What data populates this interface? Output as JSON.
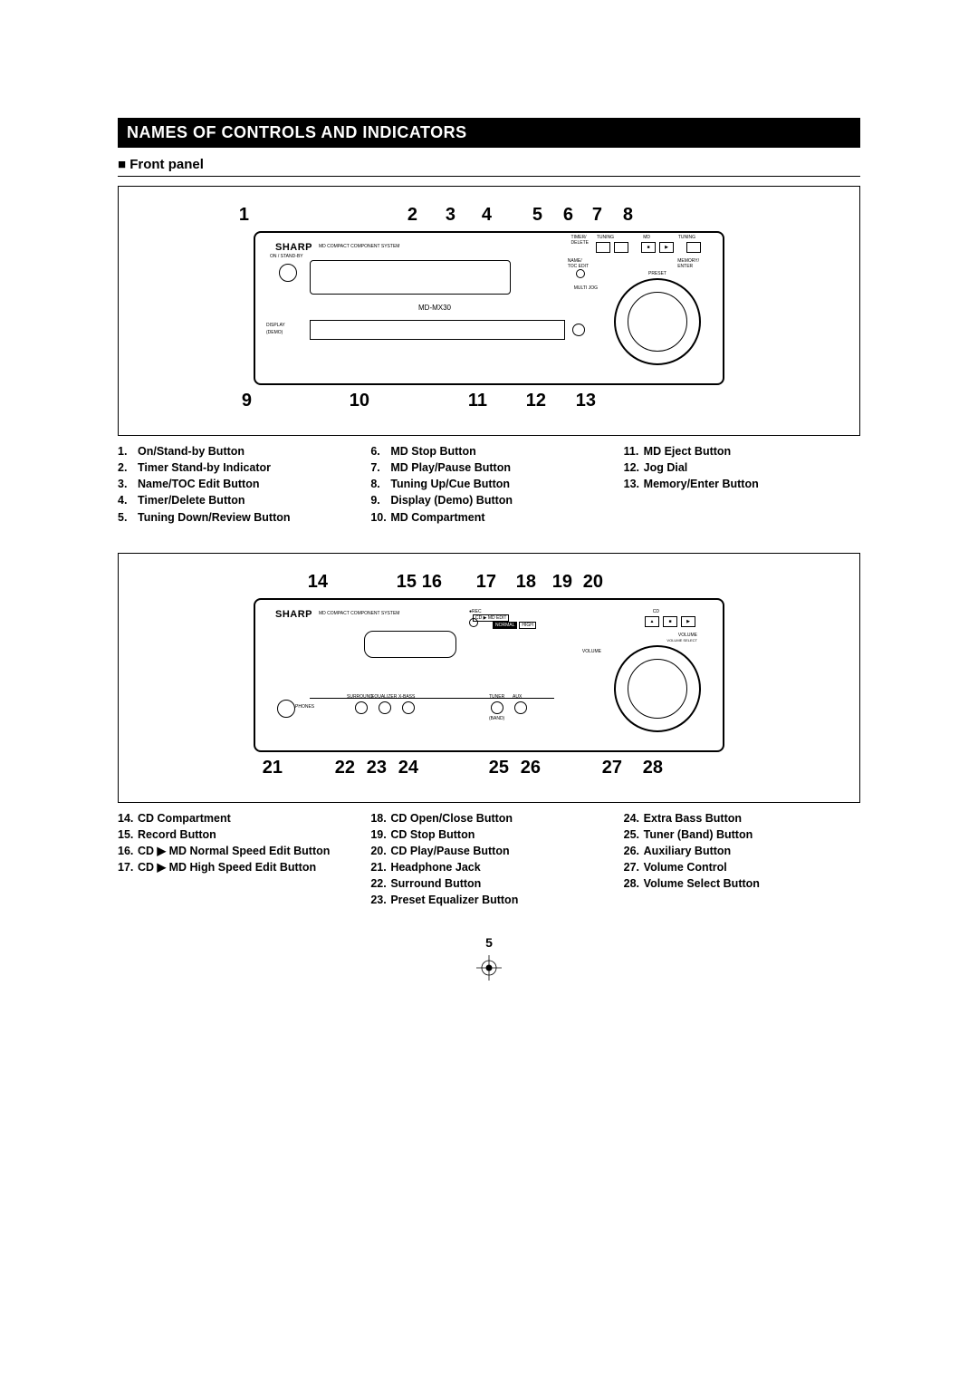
{
  "section_title": "NAMES OF CONTROLS AND INDICATORS",
  "subsection_marker": "■",
  "subsection_title": "Front panel",
  "page_number": "5",
  "device1": {
    "brand": "SHARP",
    "subbrand": "MD COMPACT COMPONENT SYSTEM",
    "model": "MD-MX30",
    "left_label1": "ON / STAND-BY",
    "left_label2": "DISPLAY",
    "left_label3": "(DEMO)",
    "top_label_timer": "TIMER/",
    "top_label_delete": "DELETE",
    "top_label_tuning_down": "TUNING",
    "top_label_md": "MD",
    "top_label_tuning_up": "TUNING",
    "label_name": "NAME/",
    "label_toc": "TOC EDIT",
    "label_memory": "MEMORY/",
    "label_enter": "ENTER",
    "label_multijog": "MULTI JOG",
    "label_preset": "PRESET",
    "callouts_top": [
      "1",
      "2",
      "3",
      "4",
      "5",
      "6",
      "7",
      "8"
    ],
    "callouts_bottom": [
      "9",
      "10",
      "11",
      "12",
      "13"
    ]
  },
  "device2": {
    "brand": "SHARP",
    "subbrand": "MD COMPACT COMPONENT SYSTEM",
    "label_rec": "REC",
    "label_cdmd": "CD ▶ MD EDIT",
    "label_normal": "NORMAL",
    "label_high": "HIGH",
    "label_cd": "CD",
    "label_volume": "VOLUME",
    "label_volume_select": "VOLUME SELECT",
    "label_phones": "PHONES",
    "label_surround": "SURROUND",
    "label_equalizer": "EQUALIZER",
    "label_xbass": "X-BASS",
    "label_tuner": "TUNER",
    "label_aux": "AUX",
    "label_band": "(BAND)",
    "callouts_top": [
      "14",
      "15",
      "16",
      "17",
      "18",
      "19",
      "20"
    ],
    "callouts_bottom": [
      "21",
      "22",
      "23",
      "24",
      "25",
      "26",
      "27",
      "28"
    ]
  },
  "legend1": {
    "col1": [
      {
        "n": "1.",
        "t": "On/Stand-by Button"
      },
      {
        "n": "2.",
        "t": "Timer Stand-by Indicator"
      },
      {
        "n": "3.",
        "t": "Name/TOC Edit Button"
      },
      {
        "n": "4.",
        "t": "Timer/Delete Button"
      },
      {
        "n": "5.",
        "t": "Tuning Down/Review Button"
      }
    ],
    "col2": [
      {
        "n": "6.",
        "t": "MD Stop Button"
      },
      {
        "n": "7.",
        "t": "MD Play/Pause Button"
      },
      {
        "n": "8.",
        "t": "Tuning Up/Cue Button"
      },
      {
        "n": "9.",
        "t": "Display (Demo) Button"
      },
      {
        "n": "10.",
        "t": "MD Compartment"
      }
    ],
    "col3": [
      {
        "n": "11.",
        "t": "MD Eject Button"
      },
      {
        "n": "12.",
        "t": "Jog Dial"
      },
      {
        "n": "13.",
        "t": "Memory/Enter Button"
      }
    ]
  },
  "legend2": {
    "col1": [
      {
        "n": "14.",
        "t": "CD Compartment"
      },
      {
        "n": "15.",
        "t": "Record Button"
      },
      {
        "n": "16.",
        "t": "CD ▶ MD Normal Speed Edit Button"
      },
      {
        "n": "17.",
        "t": "CD ▶ MD High Speed Edit Button"
      }
    ],
    "col2": [
      {
        "n": "18.",
        "t": "CD Open/Close Button"
      },
      {
        "n": "19.",
        "t": "CD Stop Button"
      },
      {
        "n": "20.",
        "t": "CD Play/Pause Button"
      },
      {
        "n": "21.",
        "t": "Headphone Jack"
      },
      {
        "n": "22.",
        "t": "Surround Button"
      },
      {
        "n": "23.",
        "t": "Preset Equalizer Button"
      }
    ],
    "col3": [
      {
        "n": "24.",
        "t": "Extra Bass Button"
      },
      {
        "n": "25.",
        "t": "Tuner (Band) Button"
      },
      {
        "n": "26.",
        "t": "Auxiliary Button"
      },
      {
        "n": "27.",
        "t": "Volume Control"
      },
      {
        "n": "28.",
        "t": "Volume Select Button"
      }
    ]
  }
}
